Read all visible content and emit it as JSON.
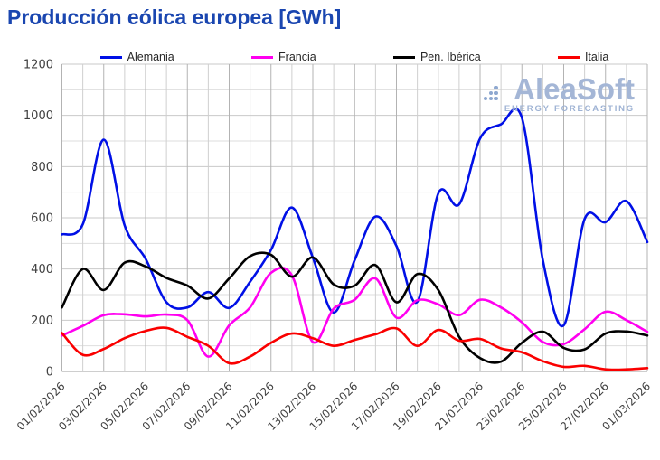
{
  "page": {
    "title": "Producción eólica europea [GWh]"
  },
  "watermark": {
    "brand": "AleaSoft",
    "tagline": "ENERGY FORECASTING"
  },
  "colors": {
    "title_text": "#1a46b0",
    "axis_text": "#404040",
    "legend_text": "#262626",
    "grid_minor_h": "#dedede",
    "grid_major_h": "#c9c9c9",
    "grid_minor_v": "#cfcfcf",
    "grid_major_v": "#b3b3b3",
    "axis_line": "#9e9e9e",
    "watermark": "#a4b6d6"
  },
  "chart_data": {
    "type": "line",
    "title": "Producción eólica europea [GWh]",
    "xlabel": "",
    "ylabel": "",
    "ylim": [
      0,
      1200
    ],
    "y_ticks": [
      0,
      200,
      400,
      600,
      800,
      1000,
      1200
    ],
    "y_minor_step": 100,
    "grid": true,
    "legend_position": "top",
    "smooth": true,
    "x": [
      "01/02/2026",
      "02/02/2026",
      "03/02/2026",
      "04/02/2026",
      "05/02/2026",
      "06/02/2026",
      "07/02/2026",
      "08/02/2026",
      "09/02/2026",
      "10/02/2026",
      "11/02/2026",
      "12/02/2026",
      "13/02/2026",
      "14/02/2026",
      "15/02/2026",
      "16/02/2026",
      "17/02/2026",
      "18/02/2026",
      "19/02/2026",
      "20/02/2026",
      "21/02/2026",
      "22/02/2026",
      "23/02/2026",
      "24/02/2026",
      "25/02/2026",
      "26/02/2026",
      "27/02/2026",
      "28/02/2026",
      "01/03/2026"
    ],
    "x_tick_labels": [
      "01/02/2026",
      "03/02/2026",
      "05/02/2026",
      "07/02/2026",
      "09/02/2026",
      "11/02/2026",
      "13/02/2026",
      "15/02/2026",
      "17/02/2026",
      "19/02/2026",
      "21/02/2026",
      "23/02/2026",
      "25/02/2026",
      "27/02/2026",
      "01/03/2026"
    ],
    "series": [
      {
        "name": "Alemania",
        "color": "#0010e6",
        "values": [
          535,
          575,
          905,
          570,
          440,
          270,
          250,
          310,
          248,
          350,
          475,
          640,
          445,
          230,
          435,
          605,
          490,
          272,
          695,
          653,
          910,
          965,
          990,
          435,
          180,
          595,
          583,
          665,
          505
        ]
      },
      {
        "name": "Francia",
        "color": "#ff00f0",
        "values": [
          140,
          178,
          220,
          223,
          215,
          222,
          200,
          58,
          180,
          250,
          385,
          375,
          115,
          245,
          280,
          363,
          210,
          278,
          262,
          220,
          280,
          250,
          192,
          115,
          107,
          165,
          233,
          200,
          155
        ]
      },
      {
        "name": "Pen. Ibérica",
        "color": "#000000",
        "values": [
          250,
          400,
          318,
          425,
          410,
          365,
          335,
          285,
          363,
          450,
          455,
          370,
          445,
          340,
          335,
          415,
          270,
          380,
          318,
          135,
          52,
          38,
          112,
          155,
          92,
          86,
          148,
          156,
          140
        ]
      },
      {
        "name": "Italia",
        "color": "#fa0000",
        "values": [
          150,
          65,
          88,
          130,
          158,
          170,
          135,
          100,
          32,
          58,
          112,
          148,
          130,
          100,
          123,
          145,
          168,
          100,
          162,
          120,
          127,
          90,
          75,
          40,
          18,
          22,
          8,
          8,
          13
        ]
      }
    ]
  }
}
